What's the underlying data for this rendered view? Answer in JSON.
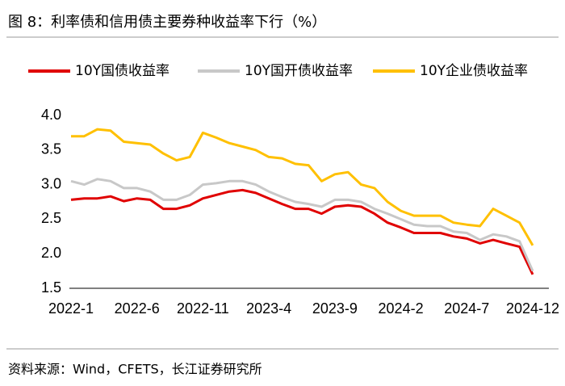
{
  "chart_data": {
    "type": "line",
    "title": "图 8：利率债和信用债主要券种收益率下行（%）",
    "source": "资料来源：Wind，CFETS，长江证券研究所",
    "categories": [
      "2022-1",
      null,
      null,
      null,
      null,
      "2022-6",
      null,
      null,
      null,
      null,
      "2022-11",
      null,
      null,
      null,
      null,
      "2023-4",
      null,
      null,
      null,
      null,
      "2023-9",
      null,
      null,
      null,
      null,
      "2024-2",
      null,
      null,
      null,
      null,
      "2024-7",
      null,
      null,
      null,
      null,
      "2024-12"
    ],
    "series": [
      {
        "name": "10Y国债收益率",
        "color": "#e00000",
        "values": [
          2.78,
          2.8,
          2.8,
          2.83,
          2.76,
          2.8,
          2.78,
          2.65,
          2.65,
          2.7,
          2.8,
          2.85,
          2.9,
          2.92,
          2.88,
          2.8,
          2.72,
          2.65,
          2.65,
          2.58,
          2.68,
          2.7,
          2.68,
          2.58,
          2.45,
          2.38,
          2.3,
          2.3,
          2.3,
          2.25,
          2.22,
          2.15,
          2.2,
          2.15,
          2.1,
          1.7
        ]
      },
      {
        "name": "10Y国开债收益率",
        "color": "#c8c8c8",
        "values": [
          3.05,
          3.0,
          3.08,
          3.05,
          2.95,
          2.95,
          2.9,
          2.78,
          2.78,
          2.85,
          3.0,
          3.02,
          3.05,
          3.05,
          3.0,
          2.9,
          2.82,
          2.75,
          2.72,
          2.68,
          2.78,
          2.78,
          2.75,
          2.65,
          2.58,
          2.5,
          2.42,
          2.4,
          2.4,
          2.32,
          2.3,
          2.2,
          2.28,
          2.25,
          2.18,
          1.75
        ]
      },
      {
        "name": "10Y企业债收益率",
        "color": "#ffc000",
        "values": [
          3.7,
          3.7,
          3.8,
          3.78,
          3.62,
          3.6,
          3.58,
          3.45,
          3.35,
          3.4,
          3.75,
          3.68,
          3.6,
          3.55,
          3.5,
          3.4,
          3.38,
          3.3,
          3.28,
          3.05,
          3.15,
          3.18,
          3.0,
          2.95,
          2.75,
          2.62,
          2.55,
          2.55,
          2.55,
          2.45,
          2.42,
          2.4,
          2.65,
          2.55,
          2.45,
          2.12
        ]
      }
    ],
    "ylim": [
      1.5,
      4.0
    ],
    "yticks": [
      1.5,
      {
        "value": 2.0,
        "label": "2.0"
      },
      2.5,
      {
        "value": 3.0,
        "label": "3.0"
      },
      3.5,
      {
        "value": 4.0,
        "label": "4.0"
      }
    ],
    "grid": false
  }
}
